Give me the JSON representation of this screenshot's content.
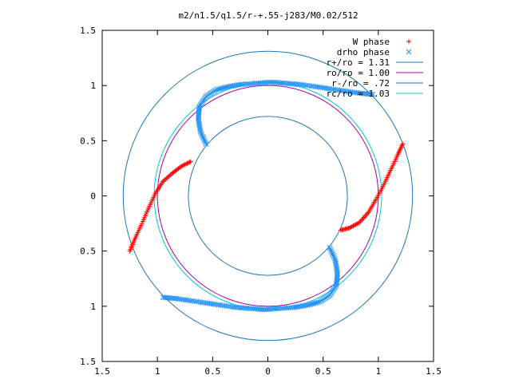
{
  "chart_data": {
    "type": "scatter",
    "title": "m2/n1.5/q1.5/r-+.55-j283/M0.02/512",
    "xlim": [
      -1.5,
      1.5
    ],
    "ylim": [
      -1.5,
      1.5
    ],
    "x_ticks": [
      {
        "value": -1.5,
        "label": "1.5"
      },
      {
        "value": -1.0,
        "label": "1"
      },
      {
        "value": -0.5,
        "label": "0.5"
      },
      {
        "value": 0.0,
        "label": "0"
      },
      {
        "value": 0.5,
        "label": "0.5"
      },
      {
        "value": 1.0,
        "label": "1"
      },
      {
        "value": 1.5,
        "label": "1.5"
      }
    ],
    "y_ticks": [
      {
        "value": -1.5,
        "label": "1.5"
      },
      {
        "value": -1.0,
        "label": "1"
      },
      {
        "value": -0.5,
        "label": "0.5"
      },
      {
        "value": 0.0,
        "label": "0"
      },
      {
        "value": 0.5,
        "label": "0.5"
      },
      {
        "value": 1.0,
        "label": "1"
      },
      {
        "value": 1.5,
        "label": "1.5"
      }
    ],
    "grid": false,
    "legend_position": "top-right",
    "circles": [
      {
        "name": "r+/ro = 1.31",
        "radius": 1.31,
        "color": "#1f77b4",
        "legend": "r+/ro = 1.31"
      },
      {
        "name": "ro/ro = 1.00",
        "radius": 1.0,
        "color": "#aa00aa",
        "legend": "ro/ro = 1.00"
      },
      {
        "name": "r-/ro = .72",
        "radius": 0.72,
        "color": "#1f77b4",
        "legend": "r-/ro = .72"
      },
      {
        "name": "rc/ro = 1.03",
        "radius": 1.03,
        "color": "#00cccc",
        "legend": "rc/ro = 1.03"
      }
    ],
    "series": [
      {
        "name": "W phase",
        "marker": "plus",
        "color": "#ff0000",
        "arms": [
          {
            "points": [
              [
                -1.25,
                -0.5
              ],
              [
                -1.2,
                -0.38
              ],
              [
                -1.14,
                -0.25
              ],
              [
                -1.08,
                -0.11
              ],
              [
                -1.02,
                0.02
              ],
              [
                -0.95,
                0.13
              ],
              [
                -0.86,
                0.21
              ],
              [
                -0.78,
                0.27
              ],
              [
                -0.7,
                0.31
              ]
            ]
          },
          {
            "points": [
              [
                1.22,
                0.47
              ],
              [
                1.17,
                0.36
              ],
              [
                1.11,
                0.23
              ],
              [
                1.05,
                0.1
              ],
              [
                0.98,
                -0.03
              ],
              [
                0.91,
                -0.15
              ],
              [
                0.83,
                -0.24
              ],
              [
                0.74,
                -0.29
              ],
              [
                0.66,
                -0.31
              ]
            ]
          }
        ]
      },
      {
        "name": "drho phase",
        "marker": "cross",
        "color": "#1e90ff",
        "arms": [
          {
            "points": [
              [
                -0.56,
                0.47
              ],
              [
                -0.61,
                0.58
              ],
              [
                -0.63,
                0.7
              ],
              [
                -0.62,
                0.81
              ],
              [
                -0.56,
                0.9
              ],
              [
                -0.47,
                0.96
              ],
              [
                -0.36,
                0.99
              ],
              [
                -0.24,
                1.01
              ],
              [
                -0.1,
                1.02
              ],
              [
                0.03,
                1.03
              ],
              [
                0.16,
                1.02
              ],
              [
                0.29,
                1.01
              ],
              [
                0.43,
                0.99
              ],
              [
                0.56,
                0.97
              ],
              [
                0.7,
                0.95
              ],
              [
                0.83,
                0.93
              ],
              [
                0.95,
                0.92
              ]
            ]
          },
          {
            "points": [
              [
                0.56,
                -0.47
              ],
              [
                0.61,
                -0.58
              ],
              [
                0.63,
                -0.7
              ],
              [
                0.62,
                -0.81
              ],
              [
                0.56,
                -0.9
              ],
              [
                0.47,
                -0.96
              ],
              [
                0.36,
                -0.99
              ],
              [
                0.24,
                -1.01
              ],
              [
                0.1,
                -1.02
              ],
              [
                -0.03,
                -1.03
              ],
              [
                -0.16,
                -1.02
              ],
              [
                -0.29,
                -1.01
              ],
              [
                -0.43,
                -0.99
              ],
              [
                -0.56,
                -0.97
              ],
              [
                -0.7,
                -0.95
              ],
              [
                -0.83,
                -0.93
              ],
              [
                -0.95,
                -0.92
              ]
            ]
          }
        ]
      }
    ]
  }
}
